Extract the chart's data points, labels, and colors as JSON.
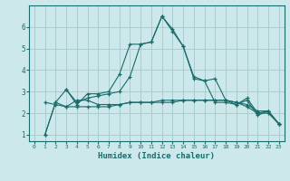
{
  "xlabel": "Humidex (Indice chaleur)",
  "ylabel": "",
  "bg_color": "#cce8ea",
  "grid_color": "#aacdd2",
  "line_color": "#1a6b6b",
  "xlim": [
    -0.5,
    23.5
  ],
  "ylim": [
    0.7,
    7.0
  ],
  "yticks": [
    1,
    2,
    3,
    4,
    5,
    6
  ],
  "xticks": [
    0,
    1,
    2,
    3,
    4,
    5,
    6,
    7,
    8,
    9,
    10,
    11,
    12,
    13,
    14,
    15,
    16,
    17,
    18,
    19,
    20,
    21,
    22,
    23
  ],
  "lines": [
    {
      "x": [
        1,
        2,
        3,
        4,
        5,
        6,
        7,
        8,
        9,
        10,
        11,
        12,
        13,
        14,
        15,
        16,
        17,
        18,
        19,
        20,
        21,
        22,
        23
      ],
      "y": [
        1.0,
        2.5,
        3.1,
        2.4,
        2.9,
        2.9,
        3.0,
        3.8,
        5.2,
        5.2,
        5.3,
        6.5,
        5.8,
        5.1,
        3.7,
        3.5,
        3.6,
        2.6,
        2.4,
        2.7,
        2.0,
        2.1,
        1.5
      ]
    },
    {
      "x": [
        1,
        2,
        3,
        4,
        5,
        6,
        7,
        8,
        9,
        10,
        11,
        12,
        13,
        14,
        15,
        16,
        17,
        18,
        19,
        20,
        21,
        22,
        23
      ],
      "y": [
        1.0,
        2.5,
        2.3,
        2.6,
        2.6,
        2.4,
        2.4,
        2.4,
        2.5,
        2.5,
        2.5,
        2.6,
        2.6,
        2.6,
        2.6,
        2.6,
        2.6,
        2.6,
        2.5,
        2.4,
        2.1,
        2.1,
        1.5
      ]
    },
    {
      "x": [
        3,
        4,
        5,
        6,
        7,
        8,
        9,
        10,
        11,
        12,
        13,
        14,
        15,
        16,
        17,
        18,
        19,
        20,
        21,
        22,
        23
      ],
      "y": [
        3.1,
        2.5,
        2.7,
        2.8,
        2.9,
        3.0,
        3.7,
        5.2,
        5.3,
        6.5,
        5.9,
        5.1,
        3.6,
        3.5,
        2.5,
        2.5,
        2.4,
        2.6,
        1.9,
        2.1,
        1.5
      ]
    },
    {
      "x": [
        1,
        2,
        3,
        4,
        5,
        6,
        7,
        8,
        9,
        10,
        11,
        12,
        13,
        14,
        15,
        16,
        17,
        18,
        19,
        20,
        21,
        22,
        23
      ],
      "y": [
        2.5,
        2.4,
        2.3,
        2.3,
        2.3,
        2.3,
        2.3,
        2.4,
        2.5,
        2.5,
        2.5,
        2.5,
        2.5,
        2.6,
        2.6,
        2.6,
        2.6,
        2.6,
        2.5,
        2.3,
        2.0,
        2.0,
        1.5
      ]
    }
  ]
}
